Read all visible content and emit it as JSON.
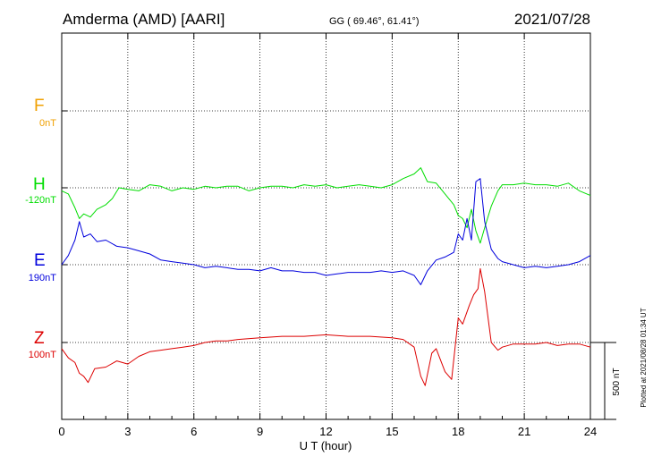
{
  "header": {
    "station": "Amderma (AMD)  [AARI]",
    "coords": "GG ( 69.46°,  61.41°)",
    "date": "2021/07/28"
  },
  "side_note": "Plotted at 2021/08/28 01:34 UT",
  "scale_label": "500 nT",
  "colors": {
    "F": "#f0a000",
    "H": "#00dd00",
    "E": "#0000dd",
    "Z": "#dd0000",
    "grid": "#000000"
  },
  "chart_data": {
    "type": "line",
    "title": "Amderma (AMD)  [AARI]",
    "xlabel": "U T (hour)",
    "ylabel": "",
    "xlim": [
      0,
      24
    ],
    "x_ticks": [
      "0",
      "3",
      "6",
      "9",
      "12",
      "15",
      "18",
      "21",
      "24"
    ],
    "grid": true,
    "scale_bar_nT": 500,
    "channels": [
      {
        "name": "F",
        "baseline": "0nT",
        "values": []
      },
      {
        "name": "H",
        "baseline": "-120nT",
        "x": [
          0,
          0.3,
          0.6,
          0.8,
          1.0,
          1.3,
          1.6,
          2.0,
          2.3,
          2.6,
          3.0,
          3.5,
          4.0,
          4.5,
          5.0,
          5.5,
          6.0,
          6.5,
          7.0,
          7.5,
          8.0,
          8.5,
          9.0,
          9.5,
          10.0,
          10.5,
          11.0,
          11.5,
          12.0,
          12.5,
          13.0,
          13.5,
          14.0,
          14.5,
          15.0,
          15.5,
          16.0,
          16.3,
          16.6,
          17.0,
          17.4,
          17.8,
          18.0,
          18.2,
          18.4,
          18.6,
          18.8,
          19.0,
          19.2,
          19.5,
          19.8,
          20.0,
          20.5,
          21.0,
          21.5,
          22.0,
          22.5,
          23.0,
          23.5,
          24.0
        ],
        "values": [
          -20,
          -40,
          -130,
          -200,
          -170,
          -190,
          -140,
          -110,
          -70,
          0,
          -10,
          -20,
          20,
          10,
          -20,
          0,
          -10,
          10,
          0,
          10,
          10,
          -20,
          0,
          10,
          10,
          0,
          20,
          10,
          20,
          0,
          10,
          20,
          10,
          0,
          20,
          60,
          90,
          130,
          40,
          30,
          -40,
          -110,
          -180,
          -200,
          -260,
          -140,
          -280,
          -360,
          -260,
          -120,
          -20,
          20,
          20,
          30,
          20,
          20,
          10,
          30,
          -20,
          -50
        ]
      },
      {
        "name": "E",
        "baseline": "190nT",
        "x": [
          0,
          0.3,
          0.6,
          0.8,
          1.0,
          1.3,
          1.6,
          2.0,
          2.5,
          3.0,
          3.5,
          4.0,
          4.5,
          5.0,
          5.5,
          6.0,
          6.5,
          7.0,
          7.5,
          8.0,
          8.5,
          9.0,
          9.5,
          10.0,
          10.5,
          11.0,
          11.5,
          12.0,
          12.5,
          13.0,
          13.5,
          14.0,
          14.5,
          15.0,
          15.5,
          16.0,
          16.3,
          16.6,
          17.0,
          17.4,
          17.8,
          18.0,
          18.2,
          18.4,
          18.6,
          18.8,
          19.0,
          19.2,
          19.5,
          19.8,
          20.0,
          20.5,
          21.0,
          21.5,
          22.0,
          22.5,
          23.0,
          23.5,
          24.0
        ],
        "values": [
          0,
          60,
          160,
          280,
          180,
          200,
          150,
          160,
          120,
          110,
          90,
          70,
          30,
          20,
          10,
          0,
          -20,
          -10,
          -20,
          -30,
          -30,
          -40,
          -20,
          -40,
          -40,
          -50,
          -50,
          -70,
          -60,
          -50,
          -50,
          -50,
          -40,
          -50,
          -40,
          -70,
          -130,
          -40,
          30,
          50,
          80,
          200,
          160,
          300,
          160,
          540,
          560,
          280,
          100,
          40,
          20,
          0,
          -20,
          -10,
          -20,
          -10,
          0,
          20,
          60
        ]
      },
      {
        "name": "Z",
        "baseline": "100nT",
        "x": [
          0,
          0.3,
          0.6,
          0.8,
          1.0,
          1.2,
          1.5,
          2.0,
          2.5,
          3.0,
          3.5,
          4.0,
          4.5,
          5.0,
          5.5,
          6.0,
          6.5,
          7.0,
          7.5,
          8.0,
          9.0,
          10.0,
          11.0,
          12.0,
          13.0,
          14.0,
          15.0,
          15.5,
          16.0,
          16.3,
          16.5,
          16.8,
          17.0,
          17.4,
          17.7,
          18.0,
          18.2,
          18.5,
          18.7,
          18.9,
          19.0,
          19.2,
          19.5,
          19.8,
          20.0,
          20.5,
          21.0,
          21.5,
          22.0,
          22.5,
          23.0,
          23.5,
          24.0
        ],
        "values": [
          -40,
          -100,
          -130,
          -200,
          -220,
          -260,
          -170,
          -160,
          -120,
          -140,
          -90,
          -60,
          -50,
          -40,
          -30,
          -20,
          0,
          10,
          10,
          20,
          30,
          40,
          40,
          50,
          40,
          40,
          30,
          20,
          -30,
          -220,
          -280,
          -70,
          -40,
          -190,
          -240,
          160,
          120,
          240,
          310,
          350,
          480,
          330,
          0,
          -50,
          -30,
          -10,
          -10,
          -10,
          0,
          -20,
          -10,
          -10,
          -30
        ]
      }
    ]
  }
}
